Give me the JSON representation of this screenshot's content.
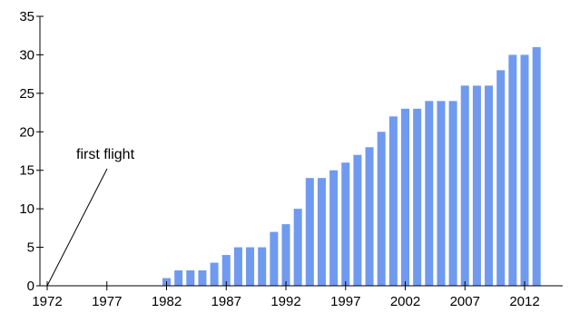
{
  "chart_data": {
    "type": "bar",
    "x": [
      1972,
      1973,
      1974,
      1975,
      1976,
      1977,
      1978,
      1979,
      1980,
      1981,
      1982,
      1983,
      1984,
      1985,
      1986,
      1987,
      1988,
      1989,
      1990,
      1991,
      1992,
      1993,
      1994,
      1995,
      1996,
      1997,
      1998,
      1999,
      2000,
      2001,
      2002,
      2003,
      2004,
      2005,
      2006,
      2007,
      2008,
      2009,
      2010,
      2011,
      2012,
      2013
    ],
    "values": [
      0,
      0,
      0,
      0,
      0,
      0,
      0,
      0,
      0,
      0,
      1,
      2,
      2,
      2,
      3,
      4,
      5,
      5,
      5,
      7,
      8,
      10,
      14,
      14,
      15,
      16,
      17,
      18,
      20,
      22,
      23,
      23,
      24,
      24,
      24,
      26,
      26,
      26,
      28,
      30,
      30,
      31
    ],
    "xticks": [
      "1972",
      "1977",
      "1982",
      "1987",
      "1992",
      "1997",
      "2002",
      "2007",
      "2012"
    ],
    "xtick_values": [
      1972,
      1977,
      1982,
      1987,
      1992,
      1997,
      2002,
      2007,
      2012
    ],
    "yticks": [
      "0",
      "5",
      "10",
      "15",
      "20",
      "25",
      "30",
      "35"
    ],
    "xlim": [
      1972,
      2013
    ],
    "ylim": [
      0,
      35
    ],
    "title": "",
    "xlabel": "",
    "ylabel": "",
    "grid": false,
    "bar_color": "#6f9af0",
    "annotation": {
      "text": "first flight",
      "x": 1972,
      "y": 0
    }
  }
}
